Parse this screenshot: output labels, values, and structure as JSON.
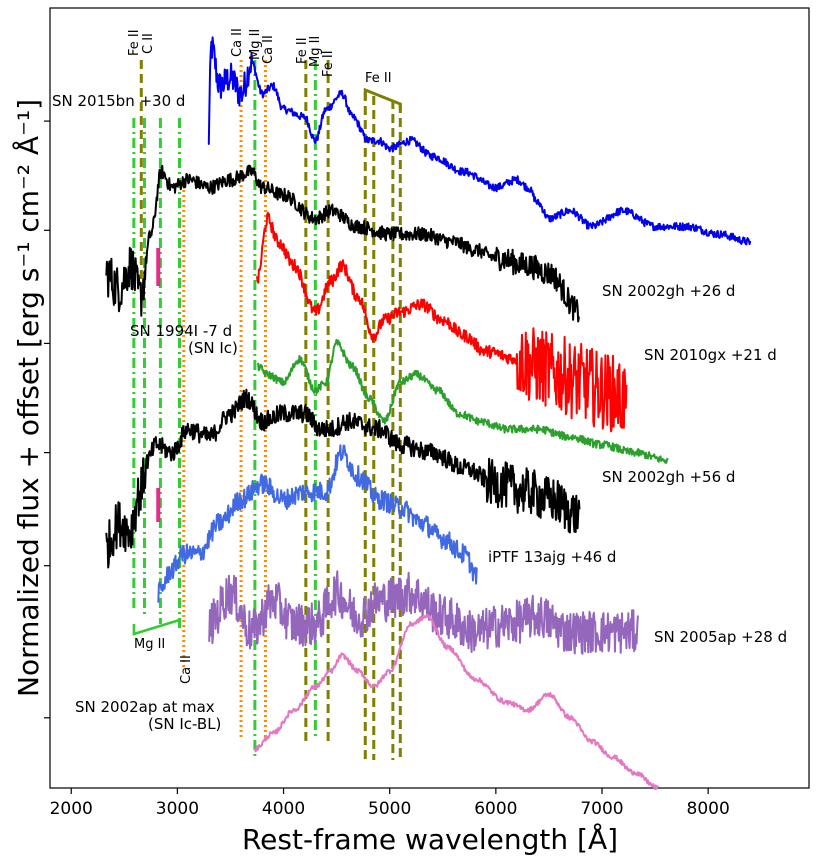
{
  "chart_data": {
    "type": "line",
    "xlabel": "Rest-frame wavelength [Å]",
    "ylabel": "Normalized flux + offset [erg s⁻¹ cm⁻² Å⁻¹]",
    "xlim": [
      1800,
      8950
    ],
    "ylim": [
      0,
      1
    ],
    "x_ticks": [
      2000,
      3000,
      4000,
      5000,
      6000,
      7000,
      8000
    ],
    "y_ticks_unlabeled": true,
    "series": [
      {
        "name": "SN 2015bn +30 d",
        "color": "#0000ee",
        "x_range": [
          3290,
          8400
        ],
        "anchors": [
          [
            3290,
            0.82
          ],
          [
            3320,
            0.95
          ],
          [
            3400,
            0.9
          ],
          [
            3500,
            0.91
          ],
          [
            3600,
            0.89
          ],
          [
            3700,
            0.93
          ],
          [
            3800,
            0.89
          ],
          [
            3900,
            0.9
          ],
          [
            4000,
            0.87
          ],
          [
            4200,
            0.86
          ],
          [
            4300,
            0.83
          ],
          [
            4400,
            0.87
          ],
          [
            4550,
            0.89
          ],
          [
            4650,
            0.86
          ],
          [
            4800,
            0.83
          ],
          [
            4900,
            0.83
          ],
          [
            5000,
            0.82
          ],
          [
            5200,
            0.83
          ],
          [
            5400,
            0.81
          ],
          [
            5700,
            0.79
          ],
          [
            6000,
            0.77
          ],
          [
            6200,
            0.78
          ],
          [
            6300,
            0.77
          ],
          [
            6400,
            0.75
          ],
          [
            6500,
            0.73
          ],
          [
            6700,
            0.74
          ],
          [
            6900,
            0.72
          ],
          [
            7200,
            0.74
          ],
          [
            7500,
            0.72
          ],
          [
            7800,
            0.72
          ],
          [
            8100,
            0.71
          ],
          [
            8400,
            0.7
          ]
        ]
      },
      {
        "name": "SN 2002gh +26 d",
        "color": "#000000",
        "x_range": [
          2330,
          6790
        ],
        "anchors": [
          [
            2330,
            0.66
          ],
          [
            2450,
            0.64
          ],
          [
            2560,
            0.67
          ],
          [
            2650,
            0.63
          ],
          [
            2750,
            0.71
          ],
          [
            2850,
            0.79
          ],
          [
            2950,
            0.77
          ],
          [
            3100,
            0.78
          ],
          [
            3300,
            0.77
          ],
          [
            3500,
            0.78
          ],
          [
            3700,
            0.79
          ],
          [
            3800,
            0.77
          ],
          [
            4000,
            0.76
          ],
          [
            4300,
            0.73
          ],
          [
            4450,
            0.74
          ],
          [
            4700,
            0.72
          ],
          [
            5000,
            0.71
          ],
          [
            5300,
            0.71
          ],
          [
            5600,
            0.7
          ],
          [
            5800,
            0.69
          ],
          [
            6000,
            0.68
          ],
          [
            6300,
            0.67
          ],
          [
            6500,
            0.66
          ],
          [
            6790,
            0.61
          ]
        ]
      },
      {
        "name": "SN 2010gx +21 d",
        "color": "#ff0000",
        "x_range": [
          3750,
          7230
        ],
        "anchors": [
          [
            3750,
            0.65
          ],
          [
            3850,
            0.73
          ],
          [
            3950,
            0.7
          ],
          [
            4100,
            0.67
          ],
          [
            4300,
            0.61
          ],
          [
            4450,
            0.65
          ],
          [
            4550,
            0.67
          ],
          [
            4700,
            0.63
          ],
          [
            4850,
            0.58
          ],
          [
            4950,
            0.6
          ],
          [
            5100,
            0.61
          ],
          [
            5300,
            0.62
          ],
          [
            5500,
            0.6
          ],
          [
            5700,
            0.58
          ],
          [
            5900,
            0.56
          ],
          [
            6200,
            0.55
          ],
          [
            6400,
            0.54
          ],
          [
            6600,
            0.53
          ],
          [
            6800,
            0.52
          ],
          [
            7000,
            0.51
          ],
          [
            7230,
            0.5
          ]
        ]
      },
      {
        "name": "SN 1994I -7 d (SN Ic)",
        "color": "#2ca02c",
        "x_range": [
          3760,
          7620
        ],
        "anchors": [
          [
            3760,
            0.54
          ],
          [
            3850,
            0.53
          ],
          [
            4000,
            0.52
          ],
          [
            4150,
            0.55
          ],
          [
            4300,
            0.51
          ],
          [
            4400,
            0.52
          ],
          [
            4500,
            0.57
          ],
          [
            4650,
            0.54
          ],
          [
            4800,
            0.5
          ],
          [
            4950,
            0.47
          ],
          [
            5100,
            0.52
          ],
          [
            5250,
            0.53
          ],
          [
            5450,
            0.51
          ],
          [
            5650,
            0.48
          ],
          [
            5850,
            0.47
          ],
          [
            6100,
            0.46
          ],
          [
            6400,
            0.46
          ],
          [
            6700,
            0.45
          ],
          [
            7000,
            0.44
          ],
          [
            7300,
            0.43
          ],
          [
            7620,
            0.42
          ]
        ]
      },
      {
        "name": "SN 2002gh +56 d",
        "color": "#000000",
        "x_range": [
          2330,
          6790
        ],
        "anchors": [
          [
            2330,
            0.31
          ],
          [
            2450,
            0.34
          ],
          [
            2550,
            0.33
          ],
          [
            2650,
            0.38
          ],
          [
            2720,
            0.42
          ],
          [
            2800,
            0.44
          ],
          [
            2950,
            0.43
          ],
          [
            3100,
            0.46
          ],
          [
            3300,
            0.45
          ],
          [
            3500,
            0.48
          ],
          [
            3650,
            0.5
          ],
          [
            3800,
            0.47
          ],
          [
            4000,
            0.48
          ],
          [
            4200,
            0.48
          ],
          [
            4350,
            0.46
          ],
          [
            4450,
            0.46
          ],
          [
            4600,
            0.47
          ],
          [
            4900,
            0.46
          ],
          [
            5100,
            0.44
          ],
          [
            5400,
            0.43
          ],
          [
            5700,
            0.41
          ],
          [
            6000,
            0.39
          ],
          [
            6300,
            0.38
          ],
          [
            6500,
            0.37
          ],
          [
            6790,
            0.35
          ]
        ]
      },
      {
        "name": "iPTF 13ajg +46 d",
        "color": "#4169e1",
        "x_range": [
          2820,
          5830
        ],
        "anchors": [
          [
            2820,
            0.25
          ],
          [
            2950,
            0.28
          ],
          [
            3050,
            0.3
          ],
          [
            3200,
            0.3
          ],
          [
            3400,
            0.34
          ],
          [
            3600,
            0.37
          ],
          [
            3800,
            0.39
          ],
          [
            4000,
            0.37
          ],
          [
            4200,
            0.38
          ],
          [
            4400,
            0.38
          ],
          [
            4550,
            0.43
          ],
          [
            4700,
            0.4
          ],
          [
            4900,
            0.37
          ],
          [
            5100,
            0.36
          ],
          [
            5300,
            0.34
          ],
          [
            5500,
            0.32
          ],
          [
            5700,
            0.3
          ],
          [
            5830,
            0.27
          ]
        ]
      },
      {
        "name": "SN 2005ap +28 d",
        "color": "#9467bd",
        "x_range": [
          3300,
          7340
        ],
        "anchors": [
          [
            3300,
            0.21
          ],
          [
            3500,
            0.25
          ],
          [
            3700,
            0.2
          ],
          [
            3900,
            0.24
          ],
          [
            4100,
            0.21
          ],
          [
            4300,
            0.21
          ],
          [
            4500,
            0.25
          ],
          [
            4700,
            0.22
          ],
          [
            4900,
            0.24
          ],
          [
            5200,
            0.25
          ],
          [
            5500,
            0.22
          ],
          [
            5800,
            0.2
          ],
          [
            6100,
            0.21
          ],
          [
            6400,
            0.22
          ],
          [
            6700,
            0.2
          ],
          [
            7000,
            0.2
          ],
          [
            7340,
            0.2
          ]
        ]
      },
      {
        "name": "SN 2002ap at max (SN Ic-BL)",
        "color": "#e377c2",
        "x_range": [
          3730,
          7530
        ],
        "anchors": [
          [
            3730,
            0.05
          ],
          [
            3900,
            0.07
          ],
          [
            4100,
            0.1
          ],
          [
            4300,
            0.13
          ],
          [
            4450,
            0.15
          ],
          [
            4550,
            0.17
          ],
          [
            4700,
            0.15
          ],
          [
            4850,
            0.13
          ],
          [
            5000,
            0.15
          ],
          [
            5200,
            0.21
          ],
          [
            5350,
            0.22
          ],
          [
            5550,
            0.18
          ],
          [
            5800,
            0.14
          ],
          [
            6100,
            0.11
          ],
          [
            6300,
            0.1
          ],
          [
            6500,
            0.12
          ],
          [
            6700,
            0.09
          ],
          [
            6900,
            0.06
          ],
          [
            7100,
            0.04
          ],
          [
            7300,
            0.02
          ],
          [
            7530,
            0.0
          ]
        ]
      }
    ],
    "magenta_marks": [
      {
        "x": 2820,
        "color": "#e7298a"
      },
      {
        "x": 2820,
        "color": "#e7298a"
      }
    ],
    "line_ids": [
      {
        "ion": "Fe II, C II",
        "style": "dashed",
        "color": "#808000",
        "x": [
          2660
        ]
      },
      {
        "ion": "Mg II",
        "style": "dashdot",
        "color": "#32cd32",
        "x": [
          2590,
          2690,
          2840,
          3020
        ]
      },
      {
        "ion": "Ca II",
        "style": "dotted",
        "color": "#ff8c00",
        "x": [
          3060
        ]
      },
      {
        "ion": "Ca II",
        "style": "dotted",
        "color": "#ff8c00",
        "x": [
          3600,
          3830
        ]
      },
      {
        "ion": "Mg II",
        "style": "dashdot",
        "color": "#32cd32",
        "x": [
          3730
        ]
      },
      {
        "ion": "Fe II",
        "style": "dashed",
        "color": "#808000",
        "x": [
          4210,
          4420
        ]
      },
      {
        "ion": "Mg II",
        "style": "dashdot",
        "color": "#32cd32",
        "x": [
          4300
        ]
      },
      {
        "ion": "Fe II",
        "style": "dashed",
        "color": "#808000",
        "x": [
          4770,
          4850,
          5030,
          5100
        ]
      }
    ],
    "annotations": {
      "sn2015bn": "SN 2015bn +30 d",
      "sn2002gh_26": "SN 2002gh +26 d",
      "sn2010gx": "SN 2010gx +21 d",
      "sn1994i_a": "SN 1994I -7 d",
      "sn1994i_b": "(SN Ic)",
      "sn2002gh_56": "SN 2002gh +56 d",
      "iptf13ajg": "iPTF 13ajg +46 d",
      "sn2005ap": "SN 2005ap +28 d",
      "sn2002ap_a": "SN 2002ap at max",
      "sn2002ap_b": "(SN Ic-BL)",
      "fe2_top_left": "Fe II",
      "c2_top_left": "C II",
      "ca2_top_1": "Ca II",
      "mg2_top_1": "Mg II",
      "ca2_top_2": "Ca II",
      "fe2_top_2": "Fe II",
      "mg2_top_2": "Mg II",
      "fe2_top_3": "Fe II",
      "fe2_group": "Fe II",
      "mg2_bottom": "Mg II",
      "ca2_bottom": "Ca II"
    }
  }
}
